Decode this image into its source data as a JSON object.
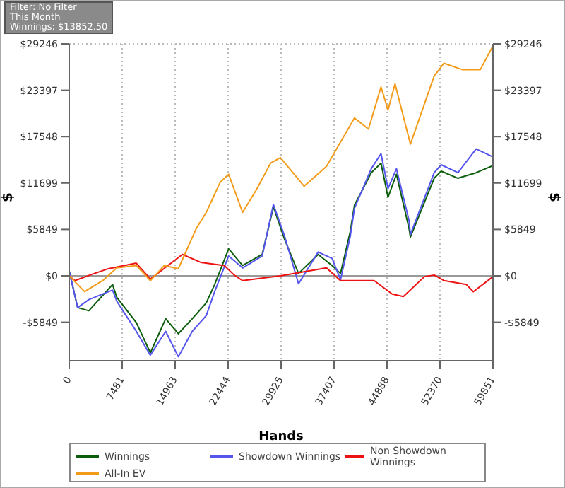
{
  "chart_data": {
    "type": "line",
    "xlabel": "Hands",
    "ylabel": "$",
    "y2label": "$",
    "annotations": [
      "Filter: No Filter",
      "This Month",
      "Winnings: $13852.50"
    ],
    "xlim": [
      0,
      59851
    ],
    "xticks": [
      0,
      7481,
      14963,
      22444,
      29925,
      37407,
      44888,
      52370,
      59851
    ],
    "ylim": [
      -10700,
      29246
    ],
    "yticks": [
      {
        "value": -5849,
        "label": "-$5849"
      },
      {
        "value": 0,
        "label": "$0"
      },
      {
        "value": 5849,
        "label": "$5849"
      },
      {
        "value": 11699,
        "label": "$11699"
      },
      {
        "value": 17548,
        "label": "$17548"
      },
      {
        "value": 23397,
        "label": "$23397"
      },
      {
        "value": 29246,
        "label": "$29246"
      }
    ],
    "y2lim": [
      -10700,
      29246
    ],
    "y2ticks": [
      {
        "value": -5849,
        "label": "-$5849"
      },
      {
        "value": 0,
        "label": "$0"
      },
      {
        "value": 5849,
        "label": "$5849"
      },
      {
        "value": 11699,
        "label": "$11699"
      },
      {
        "value": 17548,
        "label": "$17548"
      },
      {
        "value": 23397,
        "label": "$23397"
      },
      {
        "value": 29246,
        "label": "$29246"
      }
    ],
    "grid": true,
    "legend": "bottom",
    "marker": "none",
    "line_style": "solid",
    "ref_lines": [
      {
        "axis": "y",
        "value": 0,
        "color": "#999999"
      }
    ],
    "series": [
      {
        "name": "Winnings",
        "color": "#0b5d0b",
        "x": [
          0,
          1190,
          2770,
          6120,
          6720,
          9480,
          11460,
          13630,
          15410,
          17380,
          19360,
          20540,
          22520,
          24490,
          27260,
          28840,
          30420,
          32390,
          35160,
          37130,
          38320,
          39700,
          40290,
          42660,
          44040,
          45030,
          46220,
          47990,
          48190,
          51550,
          52540,
          54910,
          57470,
          59851
        ],
        "values": [
          600,
          -4000,
          -4400,
          -1100,
          -2700,
          -5900,
          -9700,
          -5400,
          -7300,
          -5400,
          -3400,
          -1100,
          3400,
          1300,
          2700,
          8700,
          4600,
          300,
          2700,
          1300,
          300,
          5600,
          8900,
          13000,
          14200,
          9900,
          12800,
          6000,
          4900,
          12300,
          13200,
          12300,
          13000,
          13900
        ]
      },
      {
        "name": "Showdown Winnings",
        "color": "#5555ee",
        "x": [
          0,
          1190,
          2770,
          6120,
          6720,
          9480,
          11460,
          13630,
          15410,
          17380,
          19360,
          20540,
          22520,
          24490,
          27260,
          28840,
          30420,
          32390,
          35160,
          37130,
          38320,
          39700,
          40290,
          42660,
          44040,
          45030,
          46220,
          47990,
          48190,
          51550,
          52540,
          54910,
          57470,
          59851
        ],
        "values": [
          600,
          -4000,
          -3000,
          -1800,
          -3200,
          -7000,
          -10000,
          -7000,
          -10200,
          -7000,
          -5000,
          -2000,
          2500,
          1000,
          2500,
          9000,
          5000,
          -1000,
          3000,
          2200,
          -500,
          5000,
          8500,
          13500,
          15400,
          11000,
          13500,
          7000,
          5200,
          13000,
          14000,
          13000,
          16000,
          15000
        ]
      },
      {
        "name": "Non Showdown Winnings",
        "color": "#ee1111",
        "x": [
          0,
          790,
          3560,
          5530,
          9480,
          11460,
          16000,
          18570,
          21920,
          23300,
          24490,
          29820,
          36340,
          38310,
          43060,
          45620,
          47200,
          50170,
          51550,
          52930,
          56090,
          57080,
          59851
        ],
        "values": [
          0,
          -600,
          300,
          900,
          1600,
          -400,
          2700,
          1700,
          1300,
          100,
          -600,
          0,
          1000,
          -600,
          -600,
          -2300,
          -2600,
          -100,
          100,
          -600,
          -1100,
          -2000,
          -100
        ]
      },
      {
        "name": "All-In EV",
        "color": "#f39c1a",
        "x": [
          0,
          2170,
          4740,
          6720,
          9480,
          11460,
          13430,
          15410,
          17970,
          19360,
          21330,
          22520,
          24490,
          26470,
          28440,
          29830,
          33180,
          36340,
          40290,
          42270,
          44040,
          45030,
          46020,
          48190,
          51550,
          52930,
          55500,
          58070,
          59851
        ],
        "values": [
          0,
          -2000,
          -600,
          1000,
          1300,
          -600,
          1300,
          900,
          6000,
          8000,
          11800,
          12800,
          8000,
          10900,
          14200,
          14900,
          11300,
          13800,
          19900,
          18500,
          23800,
          20900,
          24200,
          16600,
          25200,
          26800,
          26000,
          26000,
          29000
        ]
      }
    ]
  }
}
